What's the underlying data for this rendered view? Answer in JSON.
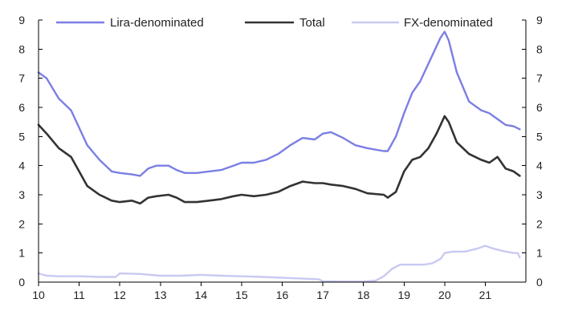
{
  "chart_data": {
    "type": "line",
    "title": "",
    "xlabel": "",
    "ylabel": "",
    "xlim": [
      10,
      22
    ],
    "ylim": [
      0,
      9
    ],
    "x_ticks": [
      "10",
      "11",
      "12",
      "13",
      "14",
      "15",
      "16",
      "17",
      "18",
      "19",
      "20",
      "21"
    ],
    "y_ticks_left": [
      "0",
      "1",
      "2",
      "3",
      "4",
      "5",
      "6",
      "7",
      "8",
      "9"
    ],
    "y_ticks_right": [
      "0",
      "1",
      "2",
      "3",
      "4",
      "5",
      "6",
      "7",
      "8",
      "9"
    ],
    "grid": false,
    "legend_position": "top",
    "series": [
      {
        "name": "Lira-denominated",
        "color": "#7b7fe3",
        "x": [
          10.0,
          10.2,
          10.5,
          10.8,
          11.0,
          11.2,
          11.5,
          11.8,
          12.0,
          12.3,
          12.5,
          12.7,
          12.9,
          13.2,
          13.4,
          13.6,
          13.9,
          14.2,
          14.5,
          14.8,
          15.0,
          15.3,
          15.6,
          15.9,
          16.2,
          16.5,
          16.8,
          17.0,
          17.2,
          17.5,
          17.8,
          18.1,
          18.5,
          18.6,
          18.8,
          19.0,
          19.2,
          19.4,
          19.6,
          19.8,
          19.9,
          20.0,
          20.1,
          20.3,
          20.6,
          20.9,
          21.1,
          21.3,
          21.5,
          21.7,
          21.85
        ],
        "values": [
          7.2,
          7.0,
          6.3,
          5.9,
          5.3,
          4.7,
          4.2,
          3.8,
          3.75,
          3.7,
          3.65,
          3.9,
          4.0,
          4.0,
          3.85,
          3.75,
          3.75,
          3.8,
          3.85,
          4.0,
          4.1,
          4.1,
          4.2,
          4.4,
          4.7,
          4.95,
          4.9,
          5.1,
          5.15,
          4.95,
          4.7,
          4.6,
          4.5,
          4.5,
          5.0,
          5.8,
          6.5,
          6.9,
          7.5,
          8.1,
          8.4,
          8.6,
          8.3,
          7.2,
          6.2,
          5.9,
          5.8,
          5.6,
          5.4,
          5.35,
          5.25
        ]
      },
      {
        "name": "Total",
        "color": "#333333",
        "x": [
          10.0,
          10.2,
          10.5,
          10.8,
          11.0,
          11.2,
          11.5,
          11.8,
          12.0,
          12.3,
          12.5,
          12.7,
          12.9,
          13.2,
          13.4,
          13.6,
          13.9,
          14.2,
          14.5,
          14.8,
          15.0,
          15.3,
          15.6,
          15.9,
          16.2,
          16.5,
          16.8,
          17.0,
          17.2,
          17.5,
          17.8,
          18.1,
          18.5,
          18.6,
          18.8,
          19.0,
          19.2,
          19.4,
          19.6,
          19.8,
          19.9,
          20.0,
          20.1,
          20.3,
          20.6,
          20.9,
          21.1,
          21.3,
          21.5,
          21.7,
          21.85
        ],
        "values": [
          5.4,
          5.1,
          4.6,
          4.3,
          3.8,
          3.3,
          3.0,
          2.8,
          2.75,
          2.8,
          2.7,
          2.9,
          2.95,
          3.0,
          2.9,
          2.75,
          2.75,
          2.8,
          2.85,
          2.95,
          3.0,
          2.95,
          3.0,
          3.1,
          3.3,
          3.45,
          3.4,
          3.4,
          3.35,
          3.3,
          3.2,
          3.05,
          3.0,
          2.9,
          3.1,
          3.8,
          4.2,
          4.3,
          4.6,
          5.1,
          5.4,
          5.7,
          5.5,
          4.8,
          4.4,
          4.2,
          4.1,
          4.3,
          3.9,
          3.8,
          3.65
        ]
      },
      {
        "name": "FX-denominated",
        "color": "#c9c9f2",
        "x": [
          10.0,
          10.2,
          10.5,
          11.0,
          11.5,
          11.9,
          12.0,
          12.5,
          13.0,
          13.5,
          14.0,
          14.5,
          15.0,
          15.5,
          16.0,
          16.5,
          16.9,
          17.0,
          17.5,
          18.0,
          18.3,
          18.5,
          18.7,
          18.9,
          19.2,
          19.5,
          19.7,
          19.9,
          20.0,
          20.2,
          20.5,
          20.8,
          21.0,
          21.2,
          21.5,
          21.7,
          21.8,
          21.85
        ],
        "values": [
          0.3,
          0.22,
          0.2,
          0.2,
          0.18,
          0.18,
          0.3,
          0.28,
          0.22,
          0.22,
          0.25,
          0.22,
          0.2,
          0.18,
          0.15,
          0.12,
          0.1,
          0.03,
          0.02,
          0.02,
          0.05,
          0.2,
          0.45,
          0.6,
          0.6,
          0.6,
          0.65,
          0.8,
          1.0,
          1.05,
          1.05,
          1.15,
          1.25,
          1.15,
          1.05,
          1.0,
          1.0,
          0.85
        ]
      }
    ]
  }
}
